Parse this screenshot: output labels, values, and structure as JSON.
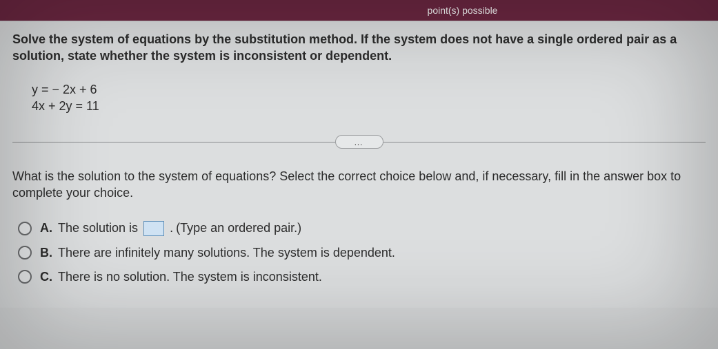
{
  "header": {
    "partial_text": "point(s) possible"
  },
  "question": {
    "instruction": "Solve the system of equations by the substitution method. If the system does not have a single ordered pair as a solution, state whether the system is inconsistent or dependent.",
    "eq1": "y = − 2x + 6",
    "eq2": "4x + 2y = 11"
  },
  "divider": {
    "ellipsis": "…"
  },
  "sub_question": {
    "prompt": "What is the solution to the system of equations? Select the correct choice below and, if necessary, fill in the answer box to complete your choice."
  },
  "choices": {
    "a": {
      "letter": "A.",
      "prefix": "The solution is",
      "suffix": ".",
      "hint": "(Type an ordered pair.)"
    },
    "b": {
      "letter": "B.",
      "text": "There are infinitely many solutions. The system is dependent."
    },
    "c": {
      "letter": "C.",
      "text": "There is no solution. The system is inconsistent."
    }
  },
  "colors": {
    "header_bg": "#6b2741",
    "page_bg": "#d8dadb",
    "text": "#2c2c2c",
    "box_border": "#5c8db8",
    "box_fill": "#cfe2f3"
  }
}
